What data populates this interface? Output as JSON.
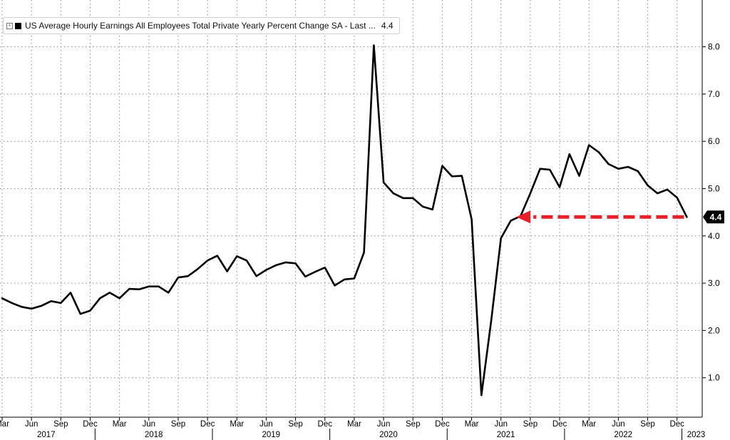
{
  "legend": {
    "toggle_glyph": "+",
    "series_label": "US Average Hourly Earnings All Employees Total Private Yearly Percent Change SA - Last ...",
    "last_value": "4.4"
  },
  "colors": {
    "series": "#000000",
    "arrow": "#e8202a",
    "grid": "#8c8c8c",
    "last_badge": "#000000"
  },
  "chart_data": {
    "type": "line",
    "title": "",
    "xlabel": "",
    "ylabel": "",
    "ylim": [
      0,
      9
    ],
    "y_ticks": [
      1,
      2,
      3,
      4,
      5,
      6,
      7,
      8
    ],
    "y_tick_labels": [
      "1.0",
      "2.0",
      "3.0",
      "4.0",
      "5.0",
      "6.0",
      "7.0",
      "8.0"
    ],
    "y_axis_side": "right",
    "grid": true,
    "legend_placement": "top-left",
    "x_month_labels": [
      {
        "label": "Mar",
        "index": 0
      },
      {
        "label": "Jun",
        "index": 3
      },
      {
        "label": "Sep",
        "index": 6
      },
      {
        "label": "Dec",
        "index": 9
      },
      {
        "label": "Mar",
        "index": 12
      },
      {
        "label": "Jun",
        "index": 15
      },
      {
        "label": "Sep",
        "index": 18
      },
      {
        "label": "Dec",
        "index": 21
      },
      {
        "label": "Mar",
        "index": 24
      },
      {
        "label": "Jun",
        "index": 27
      },
      {
        "label": "Sep",
        "index": 30
      },
      {
        "label": "Dec",
        "index": 33
      },
      {
        "label": "Mar",
        "index": 36
      },
      {
        "label": "Jun",
        "index": 39
      },
      {
        "label": "Sep",
        "index": 42
      },
      {
        "label": "Dec",
        "index": 45
      },
      {
        "label": "Mar",
        "index": 48
      },
      {
        "label": "Jun",
        "index": 51
      },
      {
        "label": "Sep",
        "index": 54
      },
      {
        "label": "Dec",
        "index": 57
      },
      {
        "label": "Mar",
        "index": 60
      },
      {
        "label": "Jun",
        "index": 63
      },
      {
        "label": "Sep",
        "index": 66
      },
      {
        "label": "Dec",
        "index": 69
      }
    ],
    "x_year_labels": [
      {
        "label": "2017",
        "start": 0,
        "end": 10
      },
      {
        "label": "2018",
        "start": 10,
        "end": 22
      },
      {
        "label": "2019",
        "start": 22,
        "end": 34
      },
      {
        "label": "2020",
        "start": 34,
        "end": 46
      },
      {
        "label": "2021",
        "start": 46,
        "end": 58
      },
      {
        "label": "2022",
        "start": 58,
        "end": 70
      },
      {
        "label": "2023",
        "start": 70,
        "end": 71
      }
    ],
    "series": [
      {
        "name": "US Average Hourly Earnings All Employees Total Private Yearly Percent Change SA",
        "x_start": "2017-03",
        "values": [
          2.68,
          2.58,
          2.5,
          2.46,
          2.52,
          2.62,
          2.58,
          2.8,
          2.35,
          2.42,
          2.68,
          2.8,
          2.68,
          2.88,
          2.87,
          2.93,
          2.93,
          2.8,
          3.12,
          3.15,
          3.3,
          3.48,
          3.58,
          3.25,
          3.57,
          3.48,
          3.15,
          3.28,
          3.38,
          3.44,
          3.42,
          3.14,
          3.24,
          3.33,
          2.95,
          3.08,
          3.1,
          3.65,
          8.03,
          5.13,
          4.9,
          4.8,
          4.8,
          4.62,
          4.56,
          5.48,
          5.26,
          5.27,
          4.35,
          0.63,
          2.2,
          3.95,
          4.32,
          4.42,
          4.9,
          5.42,
          5.4,
          5.03,
          5.73,
          5.27,
          5.92,
          5.77,
          5.52,
          5.42,
          5.46,
          5.37,
          5.07,
          4.9,
          4.98,
          4.81,
          4.4
        ]
      }
    ],
    "last_value": 4.4,
    "annotation": {
      "type": "dashed-arrow",
      "from_index": 70,
      "to_index": 53,
      "y": 4.4
    }
  }
}
